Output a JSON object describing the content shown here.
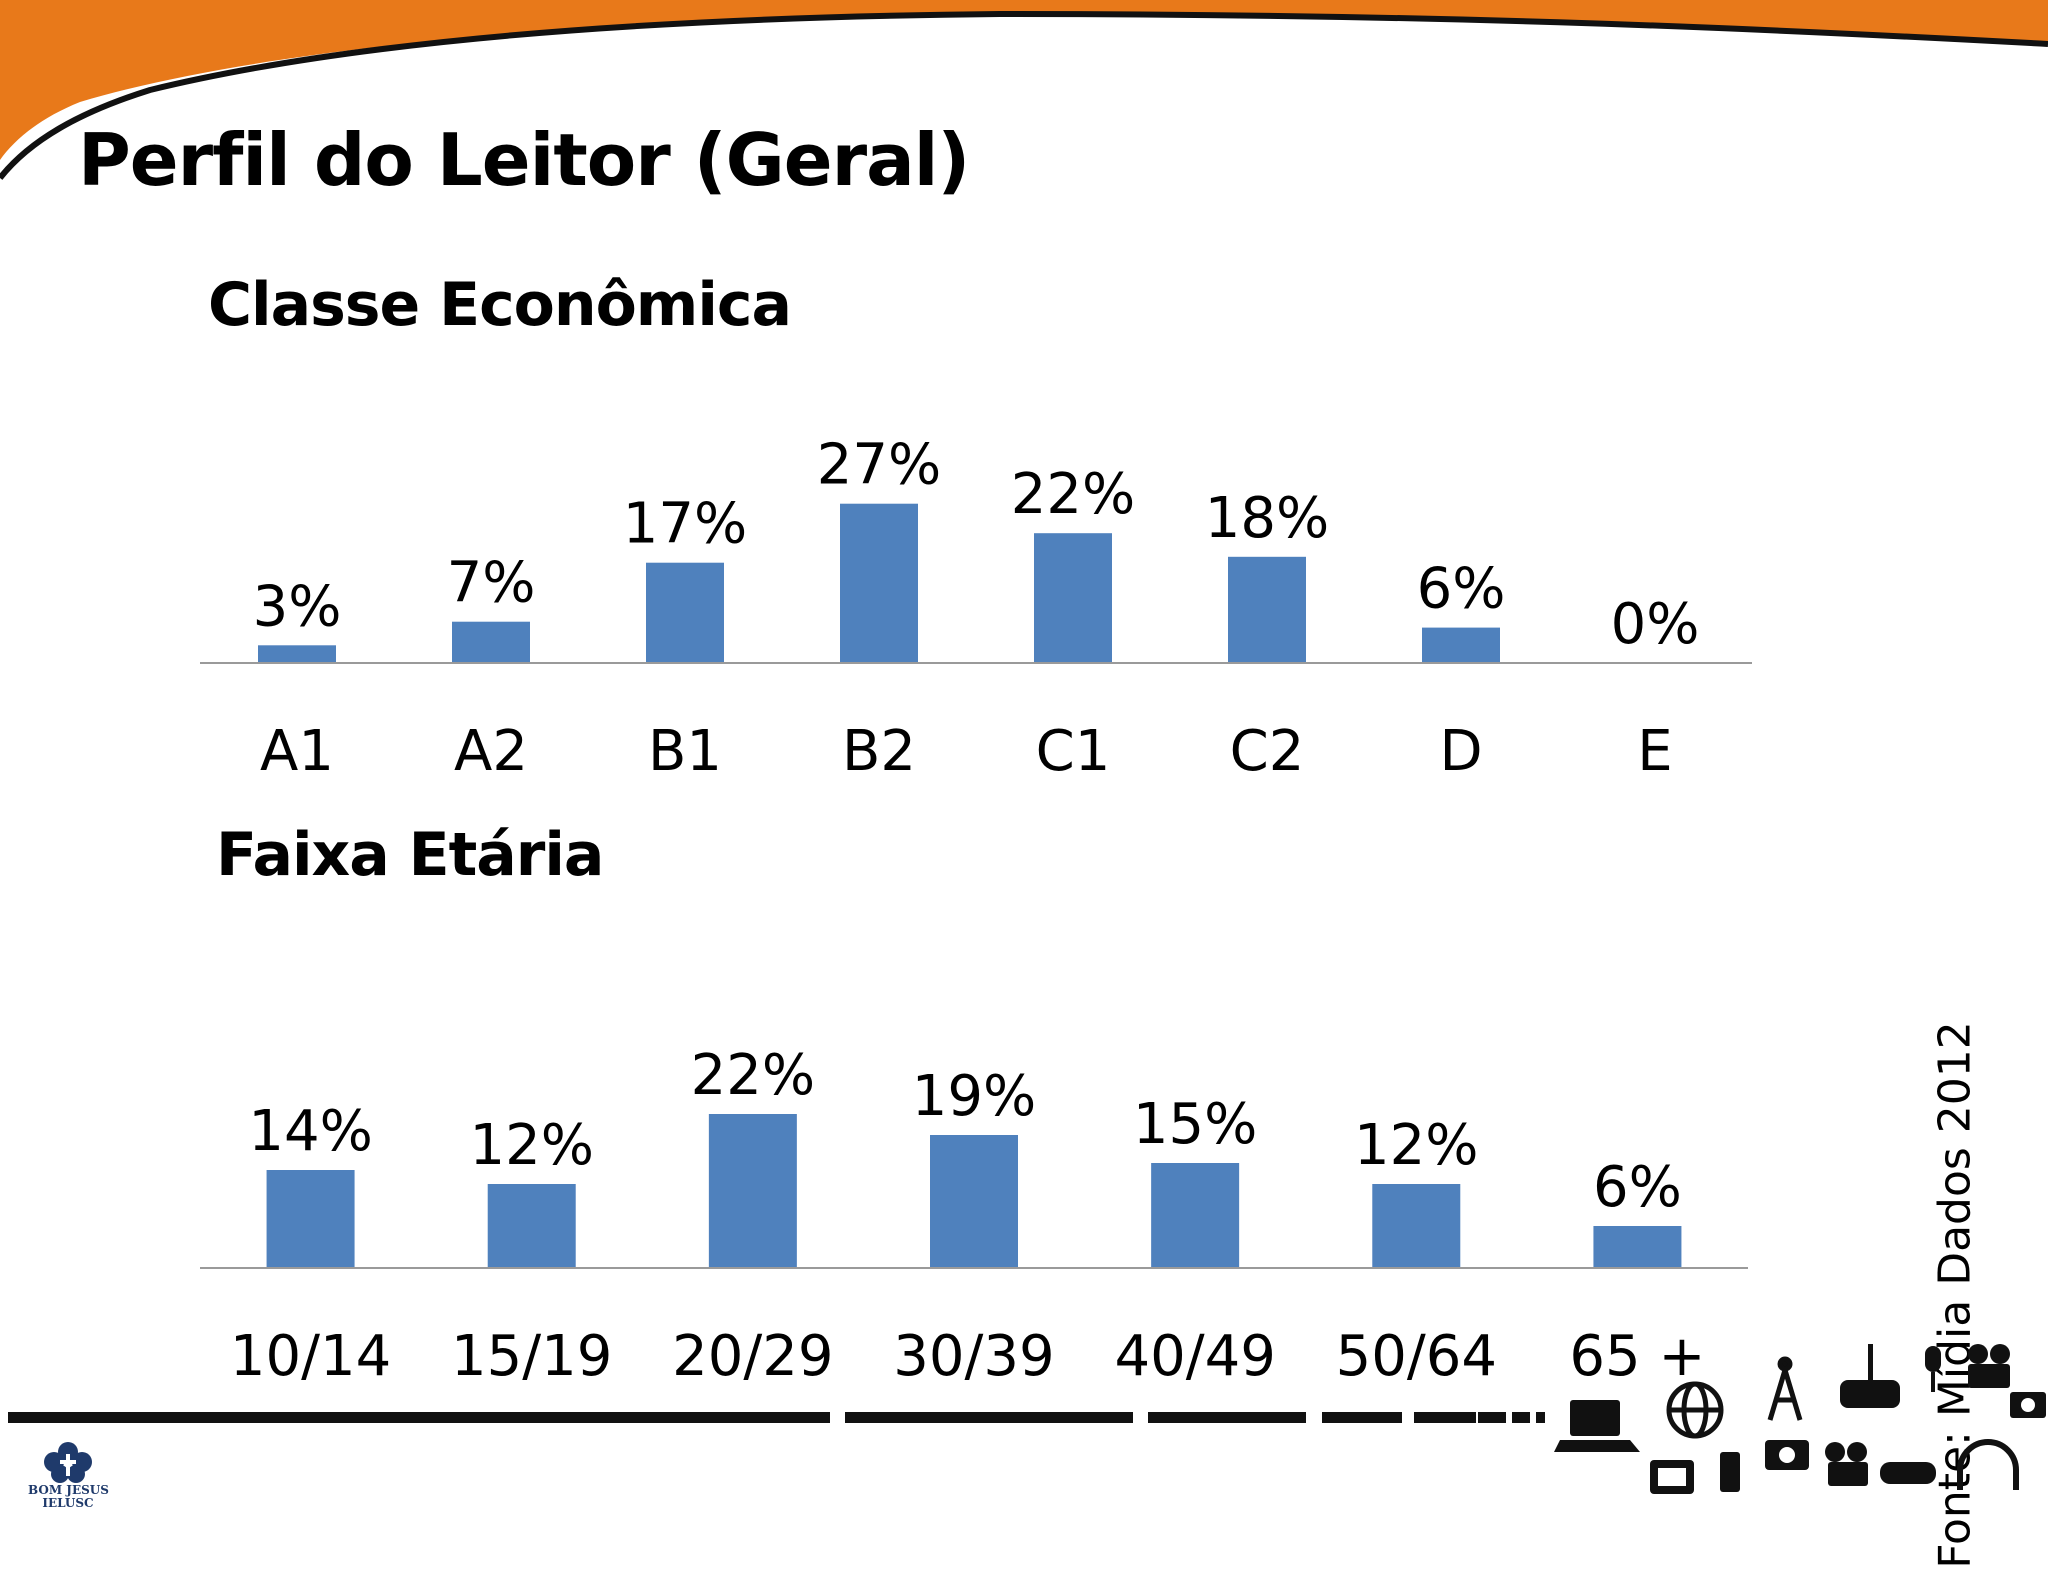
{
  "slide": {
    "title": "Perfil do Leitor (Geral)",
    "source": "Fonte: Mídia Dados 2012",
    "logo_line1": "BOM JESUS",
    "logo_line2": "IELUSC",
    "colors": {
      "accent_orange": "#E8791A",
      "bar_blue": "#4F81BD",
      "axis_gray": "#9A9A9A"
    }
  },
  "chart_data": [
    {
      "type": "bar",
      "title": "Classe Econômica",
      "categories": [
        "A1",
        "A2",
        "B1",
        "B2",
        "C1",
        "C2",
        "D",
        "E"
      ],
      "values": [
        3,
        7,
        17,
        27,
        22,
        18,
        6,
        0
      ],
      "data_labels": [
        "3%",
        "7%",
        "17%",
        "27%",
        "22%",
        "18%",
        "6%",
        "0%"
      ],
      "unit": "%",
      "ylim": [
        0,
        30
      ],
      "grid": false,
      "legend": "none"
    },
    {
      "type": "bar",
      "title": "Faixa Etária",
      "categories": [
        "10/14",
        "15/19",
        "20/29",
        "30/39",
        "40/49",
        "50/64",
        "65 +"
      ],
      "values": [
        14,
        12,
        22,
        19,
        15,
        12,
        6
      ],
      "data_labels": [
        "14%",
        "12%",
        "22%",
        "19%",
        "15%",
        "12%",
        "6%"
      ],
      "unit": "%",
      "ylim": [
        0,
        30
      ],
      "grid": false,
      "legend": "none"
    }
  ]
}
